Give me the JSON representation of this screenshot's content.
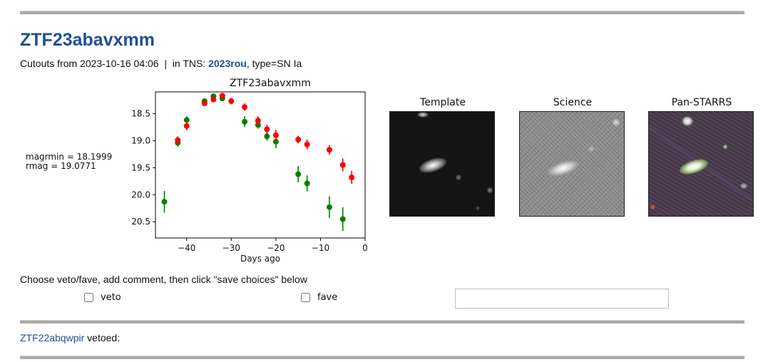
{
  "object": {
    "name": "ZTF23abavxmm",
    "cutouts_prefix": "Cutouts from",
    "cutouts_date": "2023-10-16 04:06",
    "separator": "|",
    "tns_prefix": "in TNS:",
    "tns_name": "2023rou",
    "tns_type": ", type=SN Ia"
  },
  "magnitudes": {
    "magrmin": "magrmin = 18.1999",
    "rmag": "rmag = 19.0771"
  },
  "cutouts": [
    {
      "label": "Template"
    },
    {
      "label": "Science"
    },
    {
      "label": "Pan-STARRS"
    }
  ],
  "form": {
    "prompt": "Choose veto/fave, add comment, then click \"save choices\" below",
    "veto_label": "veto",
    "fave_label": "fave",
    "comment_value": "",
    "comment_placeholder": ""
  },
  "previous": {
    "object_link": "ZTF22abqwpir",
    "status": "vetoed:"
  },
  "chart_data": {
    "type": "scatter",
    "title": "ZTF23abavxmm",
    "xlabel": "Days ago",
    "ylabel": "",
    "xlim": [
      -47,
      0
    ],
    "ylim": [
      20.8,
      18.1
    ],
    "inverted_y": true,
    "xticks": [
      -40,
      -30,
      -20,
      -10,
      0
    ],
    "yticks": [
      18.5,
      19.0,
      19.5,
      20.0,
      20.5
    ],
    "grid": false,
    "series": [
      {
        "color": "#008000",
        "points": [
          {
            "x": -45,
            "y": 20.13,
            "err": 0.2
          },
          {
            "x": -42,
            "y": 19.04,
            "err": 0.07
          },
          {
            "x": -40,
            "y": 18.62,
            "err": 0.07
          },
          {
            "x": -36,
            "y": 18.27,
            "err": 0.05
          },
          {
            "x": -34,
            "y": 18.18,
            "err": 0.05
          },
          {
            "x": -32,
            "y": 18.22,
            "err": 0.05
          },
          {
            "x": -27,
            "y": 18.65,
            "err": 0.1
          },
          {
            "x": -24,
            "y": 18.71,
            "err": 0.07
          },
          {
            "x": -22,
            "y": 18.92,
            "err": 0.08
          },
          {
            "x": -20,
            "y": 19.02,
            "err": 0.12
          },
          {
            "x": -15,
            "y": 19.62,
            "err": 0.15
          },
          {
            "x": -13,
            "y": 19.79,
            "err": 0.15
          },
          {
            "x": -8,
            "y": 20.23,
            "err": 0.2
          },
          {
            "x": -5,
            "y": 20.45,
            "err": 0.22
          }
        ]
      },
      {
        "color": "#ff0000",
        "points": [
          {
            "x": -42,
            "y": 18.99,
            "err": 0.07
          },
          {
            "x": -40,
            "y": 18.73,
            "err": 0.08
          },
          {
            "x": -36,
            "y": 18.31,
            "err": 0.05
          },
          {
            "x": -34,
            "y": 18.24,
            "err": 0.05
          },
          {
            "x": -32,
            "y": 18.17,
            "err": 0.05
          },
          {
            "x": -30,
            "y": 18.27,
            "err": 0.06
          },
          {
            "x": -27,
            "y": 18.38,
            "err": 0.07
          },
          {
            "x": -24,
            "y": 18.63,
            "err": 0.08
          },
          {
            "x": -22,
            "y": 18.79,
            "err": 0.08
          },
          {
            "x": -20,
            "y": 18.9,
            "err": 0.1
          },
          {
            "x": -15,
            "y": 18.98,
            "err": 0.07
          },
          {
            "x": -13,
            "y": 19.07,
            "err": 0.09
          },
          {
            "x": -8,
            "y": 19.17,
            "err": 0.09
          },
          {
            "x": -5,
            "y": 19.45,
            "err": 0.12
          },
          {
            "x": -3,
            "y": 19.68,
            "err": 0.12
          }
        ]
      }
    ]
  }
}
